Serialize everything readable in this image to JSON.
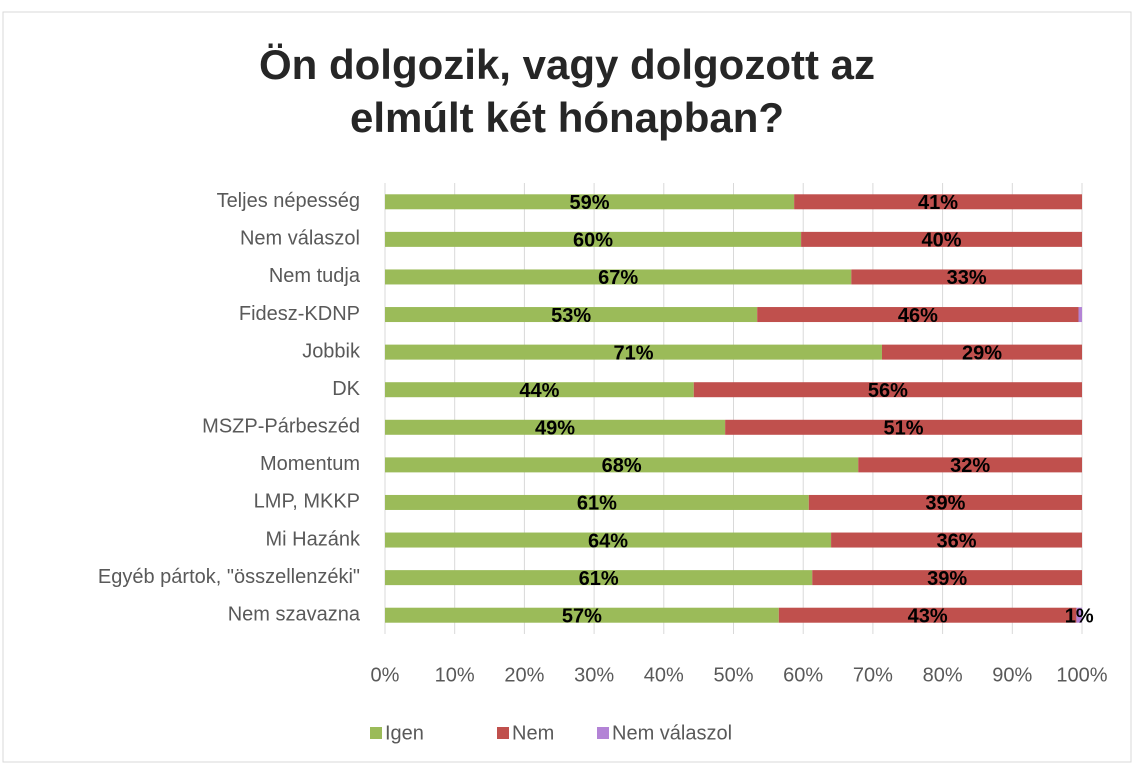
{
  "chart_data": {
    "type": "stacked_bar_horizontal",
    "title": "Ön dolgozik, vagy dolgozott az elmúlt két hónapban?",
    "categories": [
      "Teljes népesség",
      "Nem válaszol",
      "Nem tudja",
      "Fidesz-KDNP",
      "Jobbik",
      "DK",
      "MSZP-Párbeszéd",
      "Momentum",
      "LMP, MKKP",
      "Mi Hazánk",
      "Egyéb pártok, \"összellenzéki\"",
      "Nem szavazna"
    ],
    "series": [
      {
        "name": "Igen",
        "color": "#9bbb59",
        "values": [
          58.7,
          59.7,
          66.9,
          53.4,
          71.3,
          44.3,
          48.8,
          67.9,
          60.8,
          64.0,
          61.3,
          56.5
        ],
        "value_labels": [
          "59%",
          "60%",
          "67%",
          "53%",
          "71%",
          "44%",
          "49%",
          "68%",
          "61%",
          "64%",
          "61%",
          "57%"
        ]
      },
      {
        "name": "Nem",
        "color": "#c0504d",
        "values": [
          41.3,
          40.3,
          33.1,
          46.1,
          28.7,
          55.7,
          51.2,
          32.1,
          39.2,
          36.0,
          38.7,
          42.7
        ],
        "value_labels": [
          "41%",
          "40%",
          "33%",
          "46%",
          "29%",
          "56%",
          "51%",
          "32%",
          "39%",
          "36%",
          "39%",
          "43%"
        ]
      },
      {
        "name": "Nem válaszol",
        "color": "#b383d6",
        "values": [
          null,
          null,
          null,
          0.5,
          null,
          null,
          null,
          null,
          null,
          null,
          null,
          0.8
        ],
        "value_labels": [
          null,
          null,
          null,
          null,
          null,
          null,
          null,
          null,
          null,
          null,
          null,
          "1%"
        ]
      }
    ],
    "xlim": [
      0,
      100
    ],
    "xticks": [
      {
        "value": 0,
        "label": "0%"
      },
      {
        "value": 10,
        "label": "10%"
      },
      {
        "value": 20,
        "label": "20%"
      },
      {
        "value": 30,
        "label": "30%"
      },
      {
        "value": 40,
        "label": "40%"
      },
      {
        "value": 50,
        "label": "50%"
      },
      {
        "value": 60,
        "label": "60%"
      },
      {
        "value": 70,
        "label": "70%"
      },
      {
        "value": 80,
        "label": "80%"
      },
      {
        "value": 90,
        "label": "90%"
      },
      {
        "value": 100,
        "label": "100%"
      }
    ],
    "grid": true,
    "legend": "bottom"
  }
}
